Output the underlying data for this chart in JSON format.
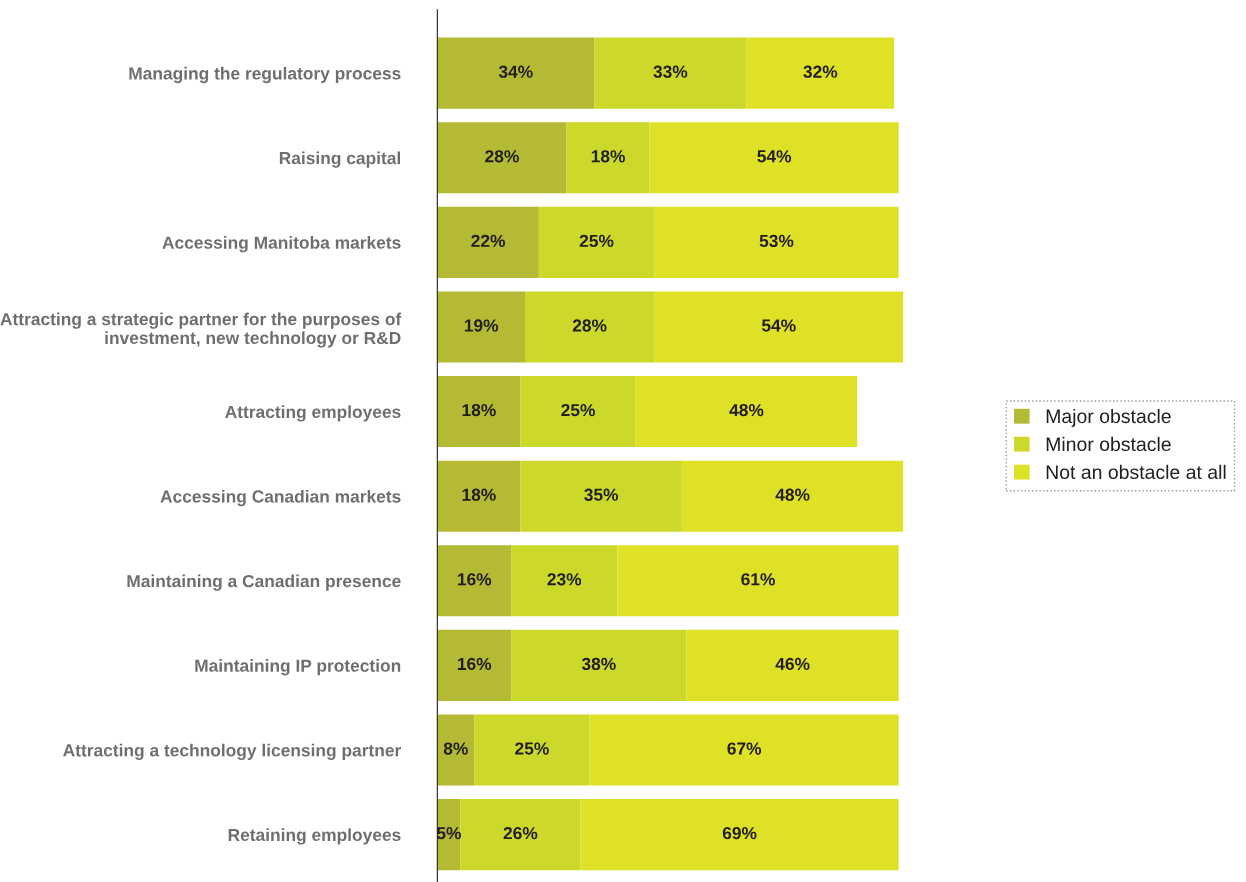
{
  "chart_data": {
    "type": "bar",
    "orientation": "horizontal",
    "stacked": true,
    "legend": "right",
    "categories": [
      "Managing the regulatory process",
      "Raising capital",
      "Accessing Manitoba markets",
      "Attracting a strategic partner for the purposes of\ninvestment, new technology or R&D",
      "Attracting employees",
      "Accessing Canadian markets",
      "Maintaining a Canadian presence",
      "Maintaining IP protection",
      "Attracting a technology licensing partner",
      "Retaining employees"
    ],
    "series": [
      {
        "name": "Major obstacle",
        "color": "#b5ba35",
        "values": [
          34,
          28,
          22,
          19,
          18,
          18,
          16,
          16,
          8,
          5
        ],
        "value_labels": [
          "34%",
          "28%",
          "22%",
          "19%",
          "18%",
          "18%",
          "16%",
          "16%",
          "8%",
          "5%"
        ]
      },
      {
        "name": "Minor obstacle",
        "color": "#ccd92b",
        "values": [
          33,
          18,
          25,
          28,
          25,
          35,
          23,
          38,
          25,
          26
        ],
        "value_labels": [
          "33%",
          "18%",
          "25%",
          "28%",
          "25%",
          "35%",
          "23%",
          "38%",
          "25%",
          "26%"
        ]
      },
      {
        "name": "Not an obstacle at all",
        "color": "#dfe126",
        "values": [
          32,
          54,
          53,
          54,
          48,
          48,
          61,
          46,
          67,
          69
        ],
        "value_labels": [
          "32%",
          "54%",
          "53%",
          "54%",
          "48%",
          "48%",
          "61%",
          "46%",
          "67%",
          "69%"
        ]
      }
    ]
  }
}
